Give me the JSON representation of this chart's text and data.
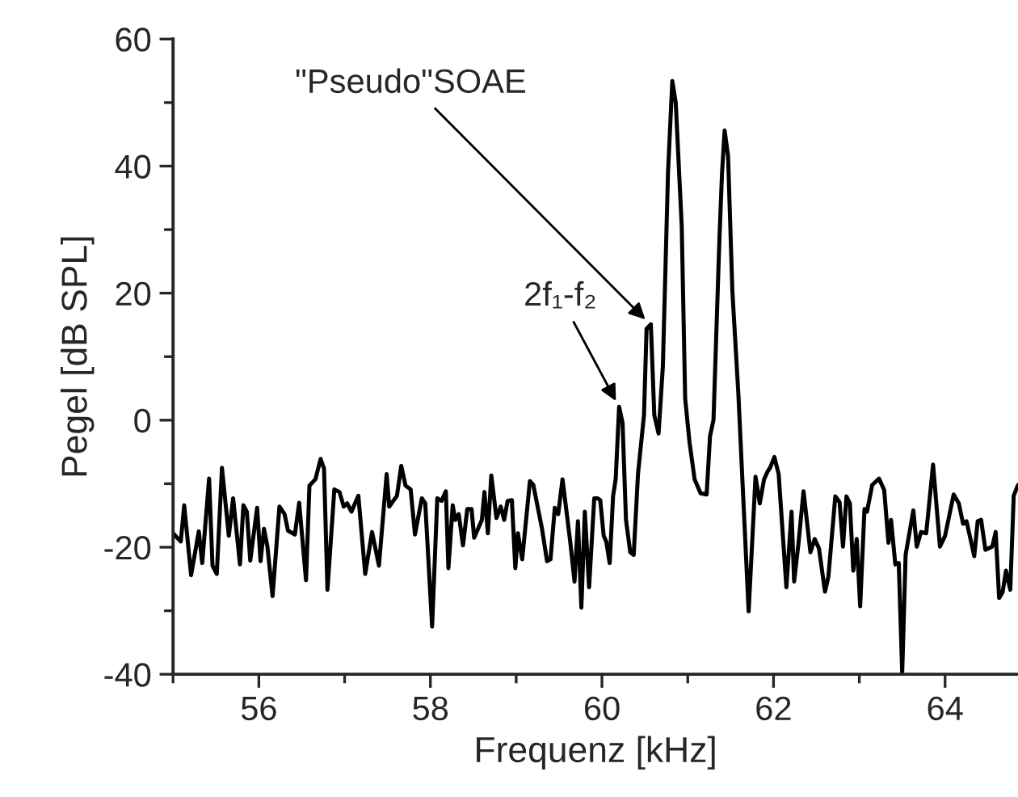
{
  "chart_data": {
    "type": "line",
    "xlabel": "Frequenz [kHz]",
    "ylabel": "Pegel [dB SPL]",
    "xlim": [
      55,
      64.85
    ],
    "ylim": [
      -40,
      60
    ],
    "xticks": [
      {
        "value": 55,
        "label": null
      },
      56,
      {
        "value": 57,
        "label": null
      },
      58,
      {
        "value": 59,
        "label": null
      },
      60,
      {
        "value": 61,
        "label": null
      },
      62,
      {
        "value": 63,
        "label": null
      },
      64
    ],
    "yticks": [
      -40,
      {
        "value": -30,
        "label": null
      },
      -20,
      {
        "value": -10,
        "label": null
      },
      0,
      {
        "value": 10,
        "label": null
      },
      20,
      {
        "value": 30,
        "label": null
      },
      40,
      {
        "value": 50,
        "label": null
      },
      60
    ],
    "grid": false,
    "marker": "none",
    "line_style": "solid",
    "annotations": [
      {
        "text": "2f₁-f₂",
        "x": 60.2,
        "y": 2.1
      },
      {
        "text": "\"Pseudo\"SOAE",
        "x": 60.56,
        "y": 15.1
      }
    ],
    "series": [
      {
        "color": "#000000",
        "x": [
          55.0,
          55.09,
          55.13,
          55.21,
          55.3,
          55.34,
          55.42,
          55.46,
          55.51,
          55.57,
          55.65,
          55.7,
          55.78,
          55.82,
          55.86,
          55.9,
          55.98,
          56.02,
          56.06,
          56.1,
          56.16,
          56.24,
          56.3,
          56.34,
          56.42,
          56.47,
          56.55,
          56.59,
          56.66,
          56.72,
          56.76,
          56.8,
          56.88,
          56.94,
          56.99,
          57.03,
          57.08,
          57.16,
          57.24,
          57.32,
          57.4,
          57.49,
          57.52,
          57.61,
          57.66,
          57.71,
          57.77,
          57.82,
          57.9,
          57.94,
          58.02,
          58.08,
          58.13,
          58.18,
          58.21,
          58.26,
          58.29,
          58.33,
          58.38,
          58.43,
          58.48,
          58.51,
          58.6,
          58.63,
          58.67,
          58.71,
          58.77,
          58.82,
          58.86,
          58.9,
          58.95,
          58.99,
          59.02,
          59.07,
          59.16,
          59.2,
          59.3,
          59.36,
          59.4,
          59.45,
          59.49,
          59.54,
          59.63,
          59.68,
          59.72,
          59.76,
          59.8,
          59.85,
          59.91,
          59.95,
          59.98,
          60.02,
          60.05,
          60.09,
          60.13,
          60.16,
          60.2,
          60.24,
          60.28,
          60.33,
          60.37,
          60.42,
          60.49,
          60.52,
          60.57,
          60.61,
          60.66,
          60.71,
          60.77,
          60.82,
          60.86,
          60.93,
          60.97,
          61.02,
          61.08,
          61.15,
          61.22,
          61.26,
          61.3,
          61.37,
          61.4,
          61.43,
          61.47,
          61.52,
          61.59,
          61.64,
          61.71,
          61.79,
          61.84,
          61.89,
          61.93,
          61.96,
          62.01,
          62.06,
          62.15,
          62.21,
          62.24,
          62.29,
          62.35,
          62.43,
          62.48,
          62.53,
          62.6,
          62.64,
          62.72,
          62.77,
          62.81,
          62.85,
          62.89,
          62.93,
          62.97,
          63.01,
          63.06,
          63.09,
          63.15,
          63.23,
          63.29,
          63.34,
          63.37,
          63.42,
          63.46,
          63.5,
          63.54,
          63.63,
          63.67,
          63.72,
          63.78,
          63.86,
          63.94,
          64.0,
          64.1,
          64.16,
          64.21,
          64.25,
          64.34,
          64.38,
          64.42,
          64.47,
          64.55,
          64.59,
          64.63,
          64.67,
          64.71,
          64.76,
          64.8,
          64.85
        ],
        "values": [
          -17.8,
          -19.1,
          -13.4,
          -24.4,
          -17.5,
          -22.5,
          -9.2,
          -22.9,
          -24.2,
          -7.5,
          -18.2,
          -12.3,
          -22.7,
          -13.4,
          -14.4,
          -22.1,
          -13.8,
          -22.2,
          -17.1,
          -19.9,
          -27.7,
          -13.6,
          -14.8,
          -17.4,
          -18.0,
          -13.0,
          -25.2,
          -10.3,
          -9.3,
          -6.1,
          -7.6,
          -26.7,
          -10.9,
          -11.3,
          -13.6,
          -13.1,
          -14.4,
          -11.9,
          -24.2,
          -17.6,
          -22.9,
          -8.5,
          -13.6,
          -11.9,
          -7.2,
          -10.3,
          -10.9,
          -18.0,
          -12.3,
          -13.1,
          -32.5,
          -12.3,
          -12.7,
          -11.2,
          -23.3,
          -13.4,
          -15.7,
          -14.8,
          -19.7,
          -14.0,
          -14.0,
          -18.5,
          -15.7,
          -11.3,
          -17.8,
          -8.7,
          -15.4,
          -13.6,
          -15.7,
          -12.7,
          -12.6,
          -23.3,
          -17.8,
          -21.9,
          -9.6,
          -10.2,
          -17.0,
          -22.2,
          -21.9,
          -13.8,
          -14.8,
          -9.3,
          -19.1,
          -25.4,
          -15.9,
          -29.5,
          -14.4,
          -26.3,
          -12.3,
          -12.3,
          -12.6,
          -18.2,
          -19.1,
          -22.5,
          -11.9,
          -9.3,
          2.1,
          -0.4,
          -15.7,
          -20.8,
          -21.2,
          -8.5,
          0.8,
          14.4,
          15.1,
          0.8,
          -2.1,
          8.5,
          39.0,
          53.4,
          50.0,
          30.5,
          3.4,
          -3.4,
          -9.3,
          -11.5,
          -11.7,
          -2.5,
          0.0,
          28.8,
          39.0,
          45.6,
          41.6,
          20.4,
          4.2,
          -10.2,
          -30.1,
          -8.9,
          -13.1,
          -9.3,
          -8.1,
          -7.5,
          -5.8,
          -8.5,
          -26.3,
          -14.4,
          -25.4,
          -19.5,
          -11.2,
          -20.8,
          -18.7,
          -20.2,
          -27.0,
          -24.6,
          -12.0,
          -12.9,
          -19.9,
          -12.0,
          -13.1,
          -23.7,
          -18.7,
          -29.3,
          -14.0,
          -14.4,
          -10.2,
          -9.2,
          -11.0,
          -19.3,
          -15.7,
          -22.7,
          -22.5,
          -39.8,
          -21.2,
          -14.2,
          -19.9,
          -17.6,
          -17.8,
          -7.0,
          -19.9,
          -18.2,
          -11.7,
          -13.1,
          -16.3,
          -15.9,
          -21.4,
          -15.9,
          -15.7,
          -20.4,
          -19.9,
          -17.6,
          -28.0,
          -27.1,
          -23.7,
          -26.7,
          -11.9,
          -10.2
        ]
      }
    ]
  }
}
